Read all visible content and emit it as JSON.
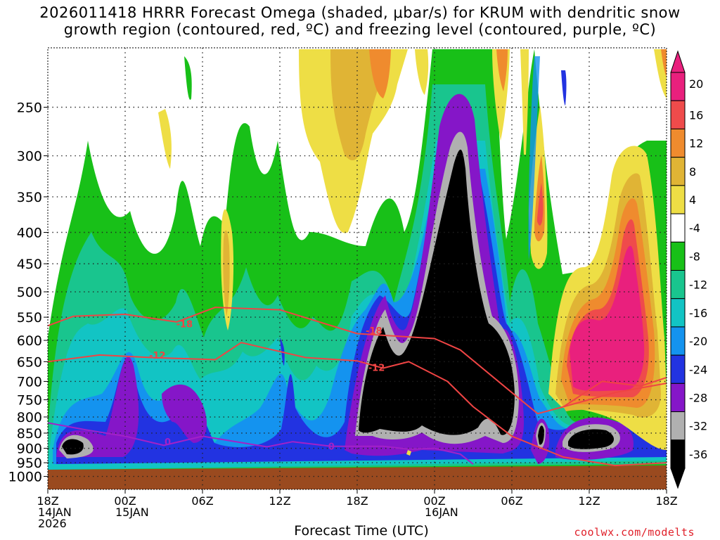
{
  "title": {
    "line1": "2026011418 HRRR Forecast Omega (shaded, μbar/s) for KRUM with dendritic snow",
    "line2": "growth region (contoured, red, ºC) and freezing level (contoured, purple, ºC)"
  },
  "xaxis_title": "Forecast Time (UTC)",
  "credit": "coolwx.com/modelts",
  "chart_data": {
    "type": "heatmap",
    "title": "2026011418 HRRR Forecast Omega (shaded, μbar/s) for KRUM with dendritic snow growth region (contoured, red, ºC) and freezing level (contoured, purple, ºC)",
    "xlabel": "Forecast Time (UTC)",
    "ylabel": "",
    "x_range_hours": [
      0,
      48
    ],
    "y_range_hPa": [
      200,
      1050
    ],
    "y_log": true,
    "x_ticks": [
      {
        "h": 0,
        "lines": [
          "18Z",
          "14JAN",
          "2026"
        ]
      },
      {
        "h": 6,
        "lines": [
          "00Z",
          "15JAN"
        ]
      },
      {
        "h": 12,
        "lines": [
          "06Z"
        ]
      },
      {
        "h": 18,
        "lines": [
          "12Z"
        ]
      },
      {
        "h": 24,
        "lines": [
          "18Z"
        ]
      },
      {
        "h": 30,
        "lines": [
          "00Z",
          "16JAN"
        ]
      },
      {
        "h": 36,
        "lines": [
          "06Z"
        ]
      },
      {
        "h": 42,
        "lines": [
          "12Z"
        ]
      },
      {
        "h": 48,
        "lines": [
          "18Z"
        ]
      }
    ],
    "y_ticks": [
      250,
      300,
      350,
      400,
      450,
      500,
      550,
      600,
      650,
      700,
      750,
      800,
      850,
      900,
      950,
      1000
    ],
    "colorbar": {
      "labels": [
        "20",
        "16",
        "12",
        "8",
        "4",
        "-4",
        "-8",
        "-12",
        "-16",
        "-20",
        "-24",
        "-28",
        "-32",
        "-36"
      ],
      "colors": [
        "#e9207d",
        "#ef4b4b",
        "#ef8b2e",
        "#e0b435",
        "#eede45",
        "#ffffff",
        "#18c018",
        "#19c58e",
        "#12c4c4",
        "#1493ef",
        "#2233e1",
        "#8516c8",
        "#b0b0b0",
        "#000000"
      ],
      "top_color": "#e9207d",
      "bottom_color": "#000000"
    },
    "ground_color": "#9a4a1f",
    "contours": [
      {
        "label": "-18",
        "color": "#ef4444",
        "points": [
          [
            0,
            568
          ],
          [
            2,
            548
          ],
          [
            6,
            544
          ],
          [
            10,
            560
          ],
          [
            13,
            530
          ],
          [
            18,
            535
          ],
          [
            24,
            585
          ],
          [
            30,
            596
          ],
          [
            32,
            622
          ],
          [
            36,
            730
          ],
          [
            38,
            790
          ],
          [
            40,
            770
          ],
          [
            44,
            730
          ],
          [
            48,
            705
          ]
        ]
      },
      {
        "label": "-12",
        "color": "#ef4444",
        "points": [
          [
            0,
            650
          ],
          [
            4,
            634
          ],
          [
            8,
            640
          ],
          [
            13,
            645
          ],
          [
            15,
            605
          ],
          [
            20,
            640
          ],
          [
            24,
            648
          ],
          [
            26,
            666
          ],
          [
            28,
            650
          ],
          [
            31,
            700
          ],
          [
            33,
            770
          ],
          [
            36,
            860
          ],
          [
            40,
            930
          ],
          [
            44,
            960
          ],
          [
            48,
            950
          ]
        ]
      },
      {
        "label": "-12",
        "color": "#ef4444",
        "points": [
          [
            40,
            770
          ],
          [
            43,
            700
          ],
          [
            46,
            712
          ],
          [
            48,
            690
          ]
        ]
      },
      {
        "label": "0",
        "color": "#a321c8",
        "points": [
          [
            0,
            818
          ],
          [
            3,
            840
          ],
          [
            6,
            860
          ],
          [
            9,
            890
          ],
          [
            12,
            860
          ],
          [
            17,
            895
          ],
          [
            19,
            878
          ],
          [
            22,
            893
          ],
          [
            26,
            893
          ],
          [
            28,
            903
          ],
          [
            30,
            900
          ],
          [
            32,
            920
          ],
          [
            33,
            955
          ]
        ]
      }
    ],
    "contour_labels": [
      {
        "text": "-18",
        "h": 10.6,
        "p": 564
      },
      {
        "text": "-12",
        "h": 8.5,
        "p": 634
      },
      {
        "text": "-18",
        "h": 25.3,
        "p": 578
      },
      {
        "text": "-12",
        "h": 25.5,
        "p": 664
      },
      {
        "text": "0",
        "h": 9.3,
        "p": 878
      },
      {
        "text": "0",
        "h": 22.0,
        "p": 893
      }
    ]
  }
}
